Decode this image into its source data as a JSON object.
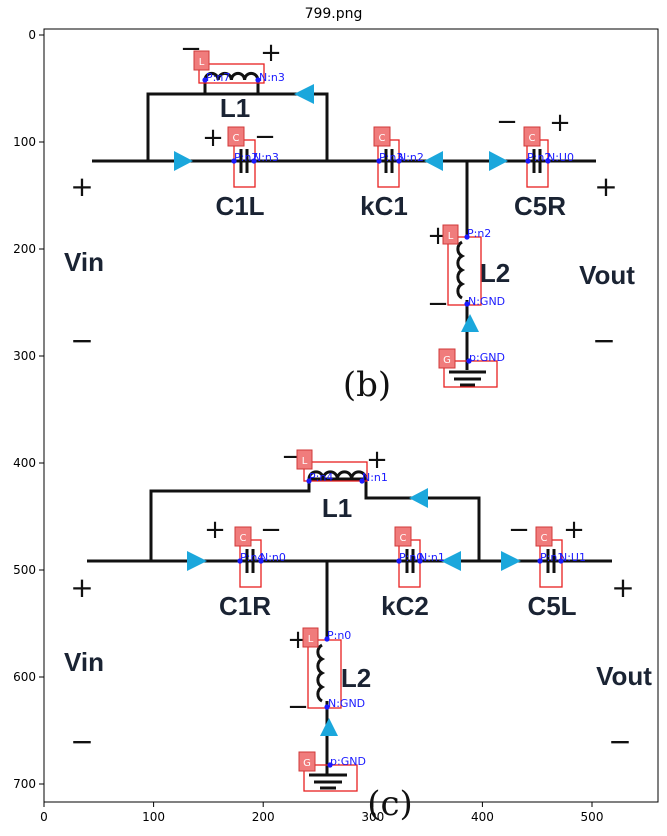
{
  "title": "799.png",
  "axes": {
    "x_ticks": [
      "0",
      "100",
      "200",
      "300",
      "400",
      "500",
      "600"
    ],
    "y_ticks": [
      "0",
      "100",
      "200",
      "300",
      "400",
      "500",
      "600",
      "700"
    ]
  },
  "colors": {
    "wire": "#111111",
    "arrow": "#1ba7dc",
    "box": "#e82020",
    "tag_fill": "#f07c7c",
    "annotation": "#1a1aff"
  },
  "panel_b": {
    "caption": "(b)",
    "vin": "Vin",
    "vout": "Vout",
    "components": {
      "l1": "L1",
      "c1l": "C1L",
      "kc1": "kC1",
      "c5r": "C5R",
      "l2": "L2"
    },
    "tags": {
      "l1": "L",
      "c1l": "C",
      "kc1": "C",
      "c5r": "C",
      "l2": "L",
      "gnd": "G"
    },
    "pins": {
      "l1_p": "P:n7",
      "l1_n": "N:n3",
      "c1l_p": "P:n7",
      "c1l_n": "N:n3",
      "kc1_p": "P:n3",
      "kc1_n": "N:n2",
      "c5r_p": "P:n2",
      "c5r_n": "N:U0",
      "l2_p": "P:n2",
      "l2_n": "N:GND",
      "gnd": "p:GND"
    }
  },
  "panel_c": {
    "caption": "(c)",
    "vin": "Vin",
    "vout": "Vout",
    "components": {
      "l1": "L1",
      "c1r": "C1R",
      "kc2": "kC2",
      "c5l": "C5L",
      "l2": "L2"
    },
    "tags": {
      "l1": "L",
      "c1r": "C",
      "kc2": "C",
      "c5l": "C",
      "l2": "L",
      "gnd": "G"
    },
    "pins": {
      "l1_p": "P:n4",
      "l1_n": "N:n1",
      "c1r_p": "P:n4",
      "c1r_n": "N:n0",
      "kc2_p": "P:n0",
      "kc2_n": "N:n1",
      "c5l_p": "P:n1",
      "c5l_n": "N:U1",
      "l2_p": "P:n0",
      "l2_n": "N:GND",
      "gnd": "p:GND"
    }
  }
}
